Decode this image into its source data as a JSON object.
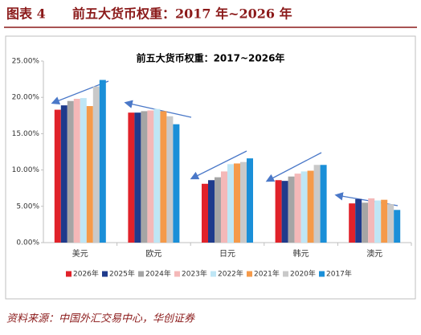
{
  "header": {
    "label": "图表 4",
    "title": "前五大货币权重：2017 年~2026 年"
  },
  "source": "资料来源：中国外汇交易中心，华创证券",
  "chart_data": {
    "type": "bar",
    "title": "前五大货币权重：2017~2026年",
    "categories": [
      "美元",
      "欧元",
      "日元",
      "韩元",
      "澳元"
    ],
    "series": [
      {
        "name": "2026年",
        "color": "#e0222a",
        "values": [
          18.3,
          17.9,
          8.1,
          8.6,
          5.4
        ]
      },
      {
        "name": "2025年",
        "color": "#1f3b8c",
        "values": [
          18.9,
          17.9,
          8.6,
          8.5,
          6.0
        ]
      },
      {
        "name": "2024年",
        "color": "#a5a5a5",
        "values": [
          19.5,
          18.1,
          9.0,
          9.1,
          5.5
        ]
      },
      {
        "name": "2023年",
        "color": "#f4b8b8",
        "values": [
          19.8,
          18.2,
          9.8,
          9.5,
          6.1
        ]
      },
      {
        "name": "2022年",
        "color": "#bfe6f5",
        "values": [
          19.9,
          18.4,
          10.8,
          9.8,
          5.8
        ]
      },
      {
        "name": "2021年",
        "color": "#f59a4a",
        "values": [
          18.8,
          18.1,
          10.9,
          9.9,
          5.9
        ]
      },
      {
        "name": "2020年",
        "color": "#c9c9c9",
        "values": [
          21.5,
          17.4,
          11.1,
          10.7,
          5.3
        ]
      },
      {
        "name": "2017年",
        "color": "#1a8fd8",
        "values": [
          22.4,
          16.3,
          11.6,
          10.7,
          4.5
        ]
      }
    ],
    "ylim": [
      0,
      25
    ],
    "yticks": [
      {
        "value": 0,
        "label": "0.00%"
      },
      {
        "value": 5,
        "label": "5.00%"
      },
      {
        "value": 10,
        "label": "10.00%"
      },
      {
        "value": 15,
        "label": "15.00%"
      },
      {
        "value": 20,
        "label": "20.00%"
      },
      {
        "value": 25,
        "label": "25.00%"
      }
    ],
    "legend": "bottom"
  }
}
